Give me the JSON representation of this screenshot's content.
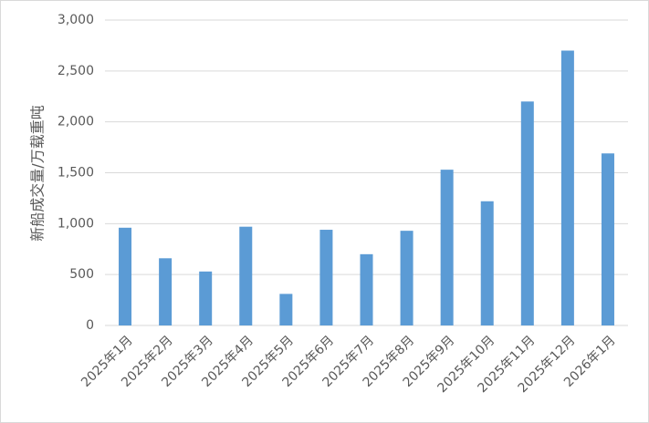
{
  "chart_data": {
    "type": "bar",
    "y_label": "新船成交量/万载重吨",
    "categories": [
      "2025年1月",
      "2025年2月",
      "2025年3月",
      "2025年4月",
      "2025年5月",
      "2025年6月",
      "2025年7月",
      "2025年8月",
      "2025年9月",
      "2025年10月",
      "2025年11月",
      "2025年12月",
      "2026年1月"
    ],
    "values": [
      960,
      660,
      530,
      970,
      310,
      940,
      700,
      930,
      1530,
      1220,
      2200,
      2700,
      1690
    ],
    "color": "#5b9bd5",
    "ylim": [
      0,
      3000
    ],
    "yticks": [
      0,
      500,
      {
        "value": 1000,
        "label": "1,000"
      },
      {
        "value": 1500,
        "label": "1,500"
      },
      {
        "value": 2000,
        "label": "2,000"
      },
      {
        "value": 2500,
        "label": "2,500"
      },
      {
        "value": 3000,
        "label": "3,000"
      }
    ],
    "grid": true
  }
}
